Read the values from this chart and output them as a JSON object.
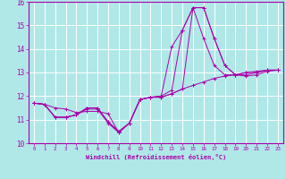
{
  "xlabel": "Windchill (Refroidissement éolien,°C)",
  "x_values": [
    0,
    1,
    2,
    3,
    4,
    5,
    6,
    7,
    8,
    9,
    10,
    11,
    12,
    13,
    14,
    15,
    16,
    17,
    18,
    19,
    20,
    21,
    22,
    23
  ],
  "series": [
    [
      11.7,
      11.65,
      11.5,
      11.45,
      11.3,
      11.35,
      11.35,
      11.25,
      10.45,
      10.85,
      11.85,
      11.95,
      11.95,
      12.1,
      12.3,
      12.45,
      12.6,
      12.75,
      12.85,
      12.9,
      13.0,
      13.05,
      13.1,
      13.1
    ],
    [
      11.7,
      11.65,
      11.1,
      11.1,
      11.2,
      11.45,
      11.45,
      10.85,
      10.45,
      10.85,
      11.85,
      11.95,
      11.95,
      12.1,
      12.3,
      15.75,
      15.75,
      14.45,
      13.3,
      12.9,
      12.85,
      12.9,
      13.05,
      13.1
    ],
    [
      11.7,
      11.65,
      11.1,
      11.1,
      11.2,
      11.5,
      11.5,
      10.9,
      10.5,
      10.85,
      11.85,
      11.95,
      12.0,
      12.25,
      14.8,
      15.75,
      15.75,
      14.45,
      13.3,
      12.9,
      12.9,
      13.0,
      13.1,
      13.1
    ],
    [
      11.7,
      11.65,
      11.1,
      11.1,
      11.2,
      11.5,
      11.5,
      10.9,
      10.5,
      10.85,
      11.85,
      11.95,
      12.0,
      14.1,
      14.8,
      15.75,
      14.45,
      13.3,
      12.9,
      12.9,
      13.0,
      13.0,
      13.1,
      13.1
    ]
  ],
  "line_color": "#aa00aa",
  "bg_color": "#b0e8e8",
  "grid_color": "#ffffff",
  "ylim": [
    10.0,
    16.0
  ],
  "xlim": [
    -0.5,
    23.5
  ],
  "yticks": [
    10,
    11,
    12,
    13,
    14,
    15,
    16
  ],
  "xticks": [
    0,
    1,
    2,
    3,
    4,
    5,
    6,
    7,
    8,
    9,
    10,
    11,
    12,
    13,
    14,
    15,
    16,
    17,
    18,
    19,
    20,
    21,
    22,
    23
  ]
}
